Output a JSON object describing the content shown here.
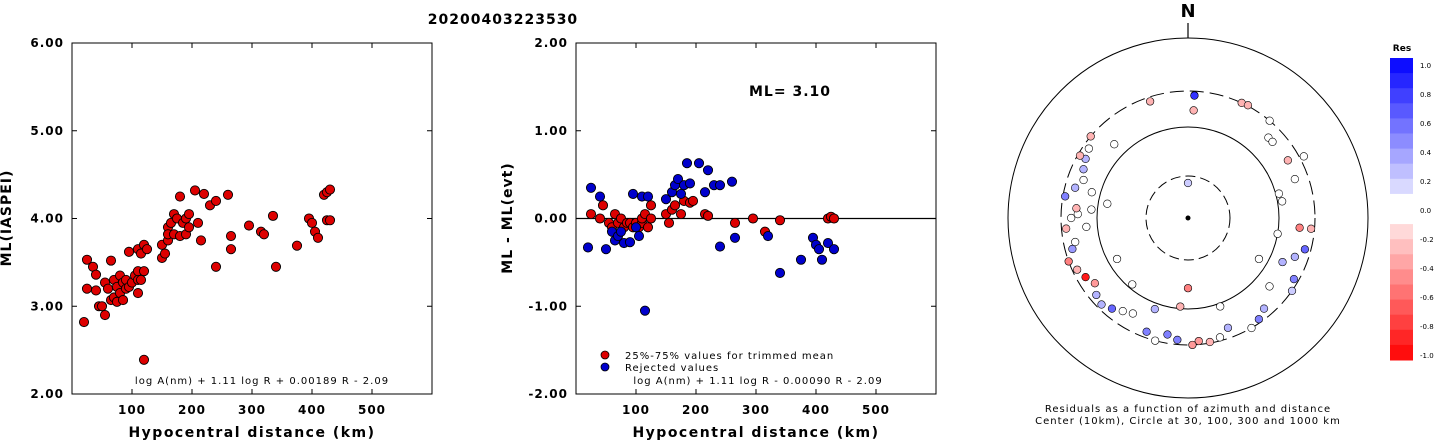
{
  "title": "20200403223530",
  "chart_data": [
    {
      "type": "scatter",
      "xlabel": "Hypocentral distance (km)",
      "ylabel": "ML(IASPEI)",
      "xlim": [
        0,
        600
      ],
      "ylim": [
        2.0,
        6.0
      ],
      "x_ticks": [
        "100",
        "200",
        "300",
        "400",
        "500"
      ],
      "y_ticks": [
        "2.00",
        "3.00",
        "4.00",
        "5.00",
        "6.00"
      ],
      "annotation": "log A(nm) + 1.11 log R + 0.00189 R - 2.09",
      "series": [
        {
          "color": "#dd0000",
          "points": [
            [
              20,
              2.82
            ],
            [
              25,
              3.53
            ],
            [
              25,
              3.2
            ],
            [
              35,
              3.45
            ],
            [
              40,
              3.36
            ],
            [
              40,
              3.18
            ],
            [
              45,
              3.0
            ],
            [
              50,
              3.0
            ],
            [
              55,
              2.9
            ],
            [
              55,
              3.27
            ],
            [
              60,
              3.2
            ],
            [
              65,
              3.07
            ],
            [
              65,
              3.52
            ],
            [
              70,
              3.3
            ],
            [
              70,
              3.1
            ],
            [
              75,
              3.05
            ],
            [
              75,
              3.22
            ],
            [
              80,
              3.15
            ],
            [
              80,
              3.35
            ],
            [
              85,
              3.07
            ],
            [
              85,
              3.27
            ],
            [
              90,
              3.2
            ],
            [
              90,
              3.3
            ],
            [
              95,
              3.22
            ],
            [
              95,
              3.62
            ],
            [
              100,
              3.27
            ],
            [
              105,
              3.35
            ],
            [
              110,
              3.4
            ],
            [
              110,
              3.3
            ],
            [
              110,
              3.15
            ],
            [
              110,
              3.65
            ],
            [
              115,
              3.3
            ],
            [
              115,
              3.6
            ],
            [
              120,
              3.4
            ],
            [
              120,
              3.7
            ],
            [
              120,
              2.39
            ],
            [
              125,
              3.65
            ],
            [
              150,
              3.55
            ],
            [
              150,
              3.7
            ],
            [
              155,
              3.6
            ],
            [
              160,
              3.9
            ],
            [
              160,
              3.75
            ],
            [
              160,
              3.82
            ],
            [
              165,
              3.95
            ],
            [
              170,
              4.05
            ],
            [
              170,
              3.82
            ],
            [
              175,
              4.0
            ],
            [
              180,
              4.25
            ],
            [
              180,
              3.8
            ],
            [
              185,
              3.95
            ],
            [
              190,
              4.0
            ],
            [
              190,
              3.82
            ],
            [
              195,
              3.9
            ],
            [
              195,
              4.05
            ],
            [
              205,
              4.32
            ],
            [
              210,
              3.95
            ],
            [
              215,
              3.75
            ],
            [
              220,
              4.28
            ],
            [
              230,
              4.15
            ],
            [
              240,
              4.2
            ],
            [
              240,
              3.45
            ],
            [
              260,
              4.27
            ],
            [
              265,
              3.8
            ],
            [
              265,
              3.65
            ],
            [
              295,
              3.92
            ],
            [
              315,
              3.85
            ],
            [
              320,
              3.82
            ],
            [
              335,
              4.03
            ],
            [
              340,
              3.45
            ],
            [
              375,
              3.69
            ],
            [
              395,
              4.0
            ],
            [
              400,
              3.95
            ],
            [
              405,
              3.85
            ],
            [
              410,
              3.78
            ],
            [
              420,
              4.27
            ],
            [
              425,
              4.3
            ],
            [
              425,
              3.98
            ],
            [
              430,
              4.33
            ],
            [
              430,
              3.98
            ]
          ]
        }
      ]
    },
    {
      "type": "scatter",
      "xlabel": "Hypocentral distance (km)",
      "ylabel": "ML - ML(evt)",
      "xlim": [
        0,
        600
      ],
      "ylim": [
        -2.0,
        2.0
      ],
      "x_ticks": [
        "100",
        "200",
        "300",
        "400",
        "500"
      ],
      "y_ticks": [
        "-2.00",
        "-1.00",
        "0.00",
        "1.00",
        "2.00"
      ],
      "ml_label": "ML= 3.10",
      "annotation": "log A(nm) + 1.11 log R - 0.00090 R - 2.09",
      "legend": [
        {
          "label": "25%-75% values for trimmed mean",
          "color": "#dd0000"
        },
        {
          "label": "Rejected values",
          "color": "#0000cc"
        }
      ],
      "series": [
        {
          "name": "25%-75% values for trimmed mean",
          "color": "#dd0000",
          "points": [
            [
              25,
              0.05
            ],
            [
              40,
              0.0
            ],
            [
              45,
              0.15
            ],
            [
              55,
              -0.05
            ],
            [
              60,
              -0.1
            ],
            [
              65,
              0.05
            ],
            [
              70,
              -0.05
            ],
            [
              75,
              0.0
            ],
            [
              80,
              -0.1
            ],
            [
              85,
              -0.05
            ],
            [
              90,
              -0.05
            ],
            [
              95,
              -0.1
            ],
            [
              100,
              -0.05
            ],
            [
              105,
              -0.1
            ],
            [
              110,
              -0.05
            ],
            [
              110,
              0.0
            ],
            [
              115,
              0.05
            ],
            [
              120,
              -0.1
            ],
            [
              125,
              0.15
            ],
            [
              125,
              0.0
            ],
            [
              150,
              0.05
            ],
            [
              155,
              -0.05
            ],
            [
              160,
              0.1
            ],
            [
              165,
              0.15
            ],
            [
              175,
              0.05
            ],
            [
              180,
              0.2
            ],
            [
              190,
              0.18
            ],
            [
              195,
              0.2
            ],
            [
              215,
              0.05
            ],
            [
              220,
              0.03
            ],
            [
              265,
              -0.05
            ],
            [
              295,
              0.0
            ],
            [
              315,
              -0.15
            ],
            [
              340,
              -0.02
            ],
            [
              420,
              0.0
            ],
            [
              425,
              0.02
            ],
            [
              430,
              0.0
            ]
          ]
        },
        {
          "name": "Rejected values",
          "color": "#0000cc",
          "points": [
            [
              20,
              -0.33
            ],
            [
              25,
              0.35
            ],
            [
              40,
              0.25
            ],
            [
              50,
              -0.35
            ],
            [
              60,
              -0.15
            ],
            [
              65,
              -0.25
            ],
            [
              70,
              -0.2
            ],
            [
              75,
              -0.15
            ],
            [
              80,
              -0.28
            ],
            [
              90,
              -0.27
            ],
            [
              95,
              0.28
            ],
            [
              100,
              -0.1
            ],
            [
              105,
              -0.2
            ],
            [
              110,
              0.25
            ],
            [
              115,
              -1.05
            ],
            [
              120,
              0.25
            ],
            [
              150,
              0.22
            ],
            [
              160,
              0.3
            ],
            [
              165,
              0.38
            ],
            [
              170,
              0.45
            ],
            [
              175,
              0.28
            ],
            [
              180,
              0.38
            ],
            [
              185,
              0.63
            ],
            [
              190,
              0.4
            ],
            [
              205,
              0.63
            ],
            [
              215,
              0.3
            ],
            [
              220,
              0.55
            ],
            [
              230,
              0.38
            ],
            [
              240,
              0.38
            ],
            [
              240,
              -0.32
            ],
            [
              260,
              0.42
            ],
            [
              265,
              -0.22
            ],
            [
              320,
              -0.2
            ],
            [
              340,
              -0.62
            ],
            [
              375,
              -0.47
            ],
            [
              395,
              -0.22
            ],
            [
              400,
              -0.3
            ],
            [
              405,
              -0.35
            ],
            [
              410,
              -0.47
            ],
            [
              420,
              -0.28
            ],
            [
              430,
              -0.35
            ]
          ]
        }
      ]
    },
    {
      "type": "scatter",
      "north_label": "N",
      "caption_line1": "Residuals as a function of azimuth and distance",
      "caption_line2": "Center (10km), Circle at 30, 100, 300 and 1000 km",
      "colorbar_title": "Res",
      "colorbar_ticks": [
        "1.0",
        "0.8",
        "0.6",
        "0.4",
        "0.2",
        "0.0",
        "-0.2",
        "-0.4",
        "-0.6",
        "-0.8",
        "-1.0"
      ],
      "points_azimuth_distance_residual": [
        [
          3,
          265,
          0.7
        ],
        [
          3,
          262,
          0.8
        ],
        [
          342,
          262,
          -0.3
        ],
        [
          25,
          300,
          -0.3
        ],
        [
          28,
          305,
          -0.3
        ],
        [
          3,
          167,
          -0.3
        ],
        [
          0,
          25,
          0.2
        ],
        [
          75,
          110,
          0.0
        ],
        [
          80,
          115,
          0.0
        ],
        [
          45,
          200,
          0.0
        ],
        [
          40,
          300,
          0.0
        ],
        [
          62,
          330,
          0.0
        ],
        [
          290,
          185,
          0.0
        ],
        [
          295,
          210,
          0.3
        ],
        [
          300,
          230,
          0.3
        ],
        [
          305,
          250,
          0.0
        ],
        [
          285,
          220,
          0.3
        ],
        [
          280,
          280,
          0.5
        ],
        [
          300,
          280,
          -0.3
        ],
        [
          285,
          130,
          0.0
        ],
        [
          280,
          80,
          0.0
        ],
        [
          265,
          140,
          0.0
        ],
        [
          275,
          120,
          0.0
        ],
        [
          240,
          80,
          0.0
        ],
        [
          220,
          90,
          0.0
        ],
        [
          200,
          120,
          0.3
        ],
        [
          180,
          60,
          -0.5
        ],
        [
          185,
          95,
          -0.3
        ],
        [
          160,
          110,
          0.0
        ],
        [
          120,
          80,
          0.0
        ],
        [
          100,
          100,
          0.0
        ],
        [
          115,
          150,
          0.3
        ],
        [
          130,
          160,
          0.0
        ],
        [
          110,
          200,
          0.3
        ],
        [
          95,
          190,
          -0.5
        ],
        [
          105,
          250,
          0.6
        ],
        [
          95,
          270,
          -0.3
        ],
        [
          120,
          260,
          0.5
        ],
        [
          125,
          300,
          0.2
        ],
        [
          140,
          230,
          0.3
        ],
        [
          145,
          270,
          0.5
        ],
        [
          150,
          300,
          0.0
        ],
        [
          160,
          220,
          0.3
        ],
        [
          165,
          270,
          0.0
        ],
        [
          170,
          290,
          -0.3
        ],
        [
          175,
          270,
          -0.4
        ],
        [
          178,
          300,
          -0.4
        ],
        [
          185,
          260,
          0.5
        ],
        [
          190,
          230,
          0.5
        ],
        [
          195,
          300,
          0.0
        ],
        [
          200,
          250,
          0.5
        ],
        [
          210,
          180,
          0.0
        ],
        [
          215,
          200,
          0.0
        ],
        [
          220,
          230,
          0.6
        ],
        [
          225,
          260,
          0.3
        ],
        [
          230,
          240,
          0.3
        ],
        [
          235,
          200,
          -0.4
        ],
        [
          240,
          230,
          -0.9
        ],
        [
          245,
          260,
          -0.3
        ],
        [
          250,
          300,
          -0.5
        ],
        [
          255,
          240,
          0.4
        ],
        [
          258,
          210,
          0.0
        ],
        [
          265,
          260,
          -0.3
        ],
        [
          270,
          220,
          0.0
        ],
        [
          272,
          180,
          0.0
        ],
        [
          275,
          190,
          -0.3
        ],
        [
          310,
          300,
          -0.3
        ],
        [
          315,
          150,
          0.0
        ],
        [
          48,
          200,
          0.0
        ],
        [
          60,
          210,
          -0.3
        ],
        [
          70,
          200,
          0.0
        ]
      ]
    }
  ]
}
